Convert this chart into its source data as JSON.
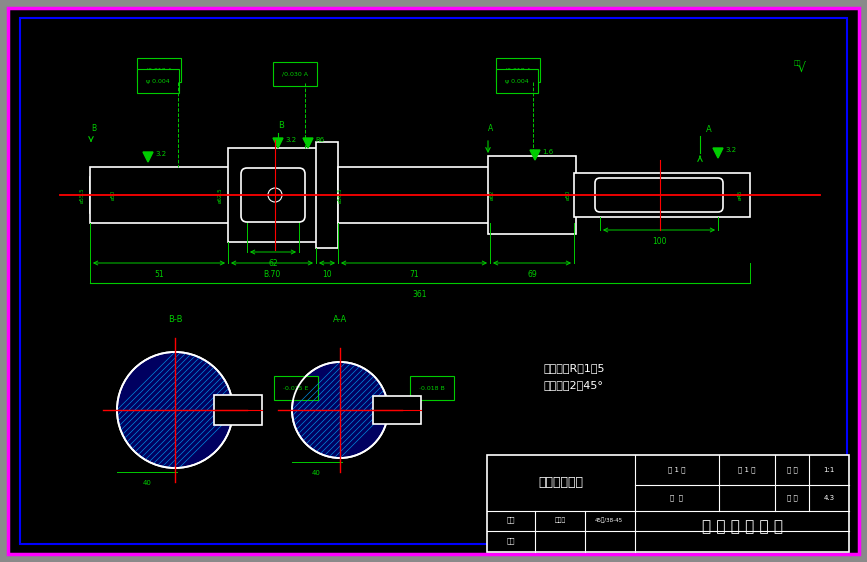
{
  "bg_gray": "#8a8a8a",
  "bg_black": "#000000",
  "magenta": "#ff00ff",
  "blue_border": "#0000ff",
  "green": "#00cc00",
  "white": "#ffffff",
  "red": "#ff0000",
  "hatch_blue": "#0066cc",
  "dark_blue": "#000060",
  "title_block_title": "减速箱低速轴",
  "university": "沈 阳 理 工 大 学",
  "note1": "未注圆角R＝1．5",
  "note2": "未注倒角2＊45°",
  "section_BB": "B-B",
  "section_AA": "A-A",
  "dim_51": "51",
  "dim_B70": "B.70",
  "dim_10": "10",
  "dim_71": "71",
  "dim_69": "69",
  "dim_361": "361",
  "dim_62": "62",
  "dim_100": "100"
}
